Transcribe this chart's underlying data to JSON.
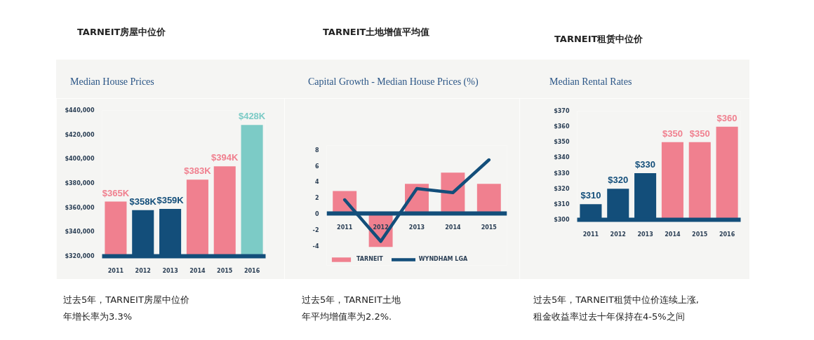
{
  "chart_data": [
    {
      "type": "bar",
      "title": "TARNEIT房屋中位价",
      "subtitle": "Median House Prices",
      "categories": [
        "2011",
        "2012",
        "2013",
        "2014",
        "2015",
        "2016"
      ],
      "values": [
        365000,
        358000,
        359000,
        383000,
        394000,
        428000
      ],
      "colors": [
        "#f0808f",
        "#134e7a",
        "#134e7a",
        "#f0808f",
        "#f0808f",
        "#7ccbc6"
      ],
      "value_labels": [
        "$365K",
        "$358K",
        "$359K",
        "$383K",
        "$394K",
        "$428K"
      ],
      "ylim": [
        320000,
        440000
      ],
      "yticks": [
        {
          "value": 320000,
          "label": "$320,000"
        },
        {
          "value": 340000,
          "label": "$340,000"
        },
        {
          "value": 360000,
          "label": "$360,000"
        },
        {
          "value": 380000,
          "label": "$380,000"
        },
        {
          "value": 400000,
          "label": "$400,000"
        },
        {
          "value": 420000,
          "label": "$420,000"
        },
        {
          "value": 440000,
          "label": "$440,000"
        }
      ],
      "annotations": [
        "过去5年，TARNEIT房屋中位价",
        "年增长率为3.3%"
      ]
    },
    {
      "type": "bar",
      "title": "TARNEIT土地增值平均值",
      "subtitle": "Capital Growth - Median House Prices (%)",
      "categories": [
        "2011",
        "2012",
        "2013",
        "2014",
        "2015"
      ],
      "series": [
        {
          "name": "TARNEIT",
          "type": "bar",
          "color": "#f0808f",
          "values": [
            2.8,
            -4.2,
            3.7,
            5.1,
            3.7
          ]
        },
        {
          "name": "WYNDHAM LGA",
          "type": "line",
          "color": "#134e7a",
          "values": [
            1.7,
            -3.5,
            3.1,
            2.6,
            6.7
          ]
        }
      ],
      "ylim": [
        -6.5,
        8.5
      ],
      "yticks": [
        -4,
        -2,
        0,
        2,
        4,
        6,
        8
      ],
      "legend": "bottom",
      "line_style": "solid",
      "annotations": [
        "过去5年，TARNEIT土地",
        "年平均增值率为2.2%."
      ]
    },
    {
      "type": "bar",
      "title": "TARNEIT租赁中位价",
      "subtitle": "Median Rental Rates",
      "categories": [
        "2011",
        "2012",
        "2013",
        "2014",
        "2015",
        "2016"
      ],
      "values": [
        310,
        320,
        330,
        350,
        350,
        360
      ],
      "colors": [
        "#134e7a",
        "#134e7a",
        "#134e7a",
        "#f0808f",
        "#f0808f",
        "#f0808f"
      ],
      "value_labels": [
        "$310",
        "$320",
        "$330",
        "$350",
        "$350",
        "$360"
      ],
      "ylim": [
        300,
        370
      ],
      "yticks": [
        {
          "value": 300,
          "label": "$300"
        },
        {
          "value": 310,
          "label": "$310"
        },
        {
          "value": 320,
          "label": "$320"
        },
        {
          "value": 330,
          "label": "$330"
        },
        {
          "value": 340,
          "label": "$340"
        },
        {
          "value": 350,
          "label": "$350"
        },
        {
          "value": 360,
          "label": "$360"
        },
        {
          "value": 370,
          "label": "$370"
        }
      ],
      "annotations": [
        "过去5年，TARNEIT租赁中位价连续上涨,",
        "租金收益率过去十年保持在4-5%之间"
      ]
    }
  ]
}
